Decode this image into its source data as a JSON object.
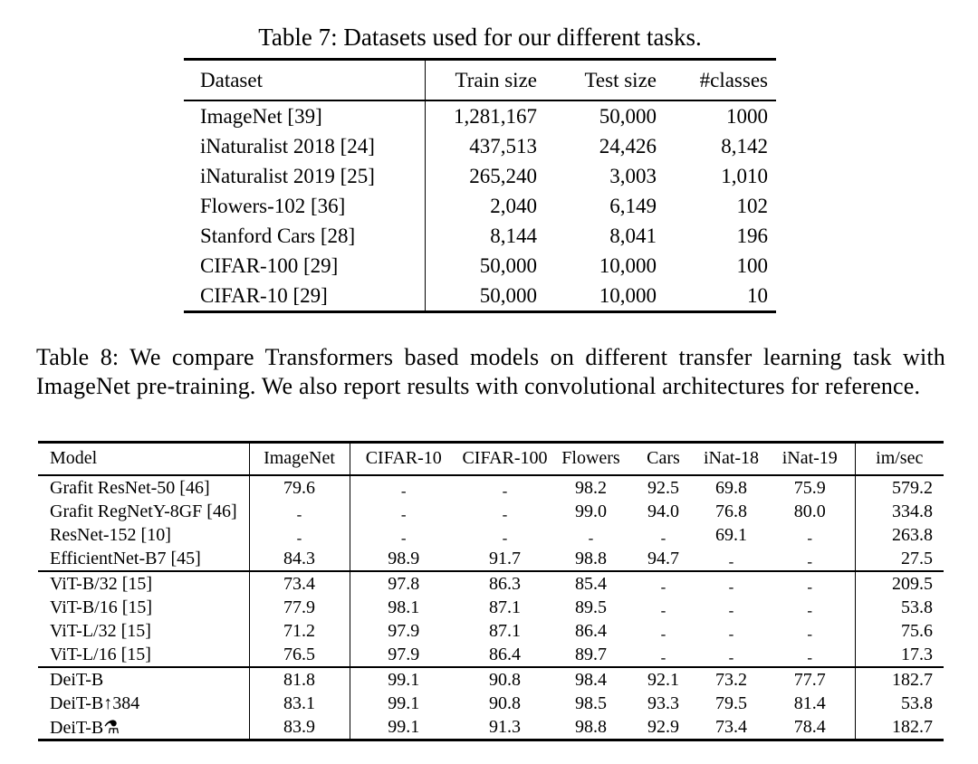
{
  "page": {
    "background": "#ffffff",
    "text_color": "#000000"
  },
  "table7": {
    "caption": "Table 7: Datasets used for our different tasks.",
    "columns": [
      "Dataset",
      "Train size",
      "Test size",
      "#classes"
    ],
    "rows": [
      [
        "ImageNet [39]",
        "1,281,167",
        "50,000",
        "1000"
      ],
      [
        "iNaturalist 2018 [24]",
        "437,513",
        "24,426",
        "8,142"
      ],
      [
        "iNaturalist 2019 [25]",
        "265,240",
        "3,003",
        "1,010"
      ],
      [
        "Flowers-102 [36]",
        "2,040",
        "6,149",
        "102"
      ],
      [
        "Stanford Cars [28]",
        "8,144",
        "8,041",
        "196"
      ],
      [
        "CIFAR-100 [29]",
        "50,000",
        "10,000",
        "100"
      ],
      [
        "CIFAR-10 [29]",
        "50,000",
        "10,000",
        "10"
      ]
    ]
  },
  "table8": {
    "caption": "Table 8: We compare Transformers based models on different transfer learning task with ImageNet pre-training.  We also report results with convolutional architectures for reference.",
    "columns": [
      "Model",
      "ImageNet",
      "CIFAR-10",
      "CIFAR-100",
      "Flowers",
      "Cars",
      "iNat-18",
      "iNat-19",
      "im/sec"
    ],
    "missing_marker": "-",
    "groups": [
      {
        "name": "convnets",
        "rows": [
          [
            "Grafit ResNet-50 [46]",
            "79.6",
            "-",
            "-",
            "98.2",
            "92.5",
            "69.8",
            "75.9",
            "579.2"
          ],
          [
            "Grafit RegNetY-8GF [46]",
            "-",
            "-",
            "-",
            "99.0",
            "94.0",
            "76.8",
            "80.0",
            "334.8"
          ],
          [
            "ResNet-152 [10]",
            "-",
            "-",
            "-",
            "-",
            "-",
            "69.1",
            "-",
            "263.8"
          ],
          [
            "EfficientNet-B7 [45]",
            "84.3",
            "98.9",
            "91.7",
            "98.8",
            "94.7",
            "-",
            "-",
            "27.5"
          ]
        ]
      },
      {
        "name": "vit",
        "rows": [
          [
            "ViT-B/32 [15]",
            "73.4",
            "97.8",
            "86.3",
            "85.4",
            "-",
            "-",
            "-",
            "209.5"
          ],
          [
            "ViT-B/16 [15]",
            "77.9",
            "98.1",
            "87.1",
            "89.5",
            "-",
            "-",
            "-",
            "53.8"
          ],
          [
            "ViT-L/32 [15]",
            "71.2",
            "97.9",
            "87.1",
            "86.4",
            "-",
            "-",
            "-",
            "75.6"
          ],
          [
            "ViT-L/16 [15]",
            "76.5",
            "97.9",
            "86.4",
            "89.7",
            "-",
            "-",
            "-",
            "17.3"
          ]
        ]
      },
      {
        "name": "deit",
        "rows": [
          [
            "DeiT-B",
            "81.8",
            "99.1",
            "90.8",
            "98.4",
            "92.1",
            "73.2",
            "77.7",
            "182.7"
          ],
          [
            "DeiT-B↑384",
            "83.1",
            "99.1",
            "90.8",
            "98.5",
            "93.3",
            "79.5",
            "81.4",
            "53.8"
          ],
          [
            "DeiT-B⚗",
            "83.9",
            "99.1",
            "91.3",
            "98.8",
            "92.9",
            "73.4",
            "78.4",
            "182.7"
          ]
        ]
      }
    ]
  }
}
